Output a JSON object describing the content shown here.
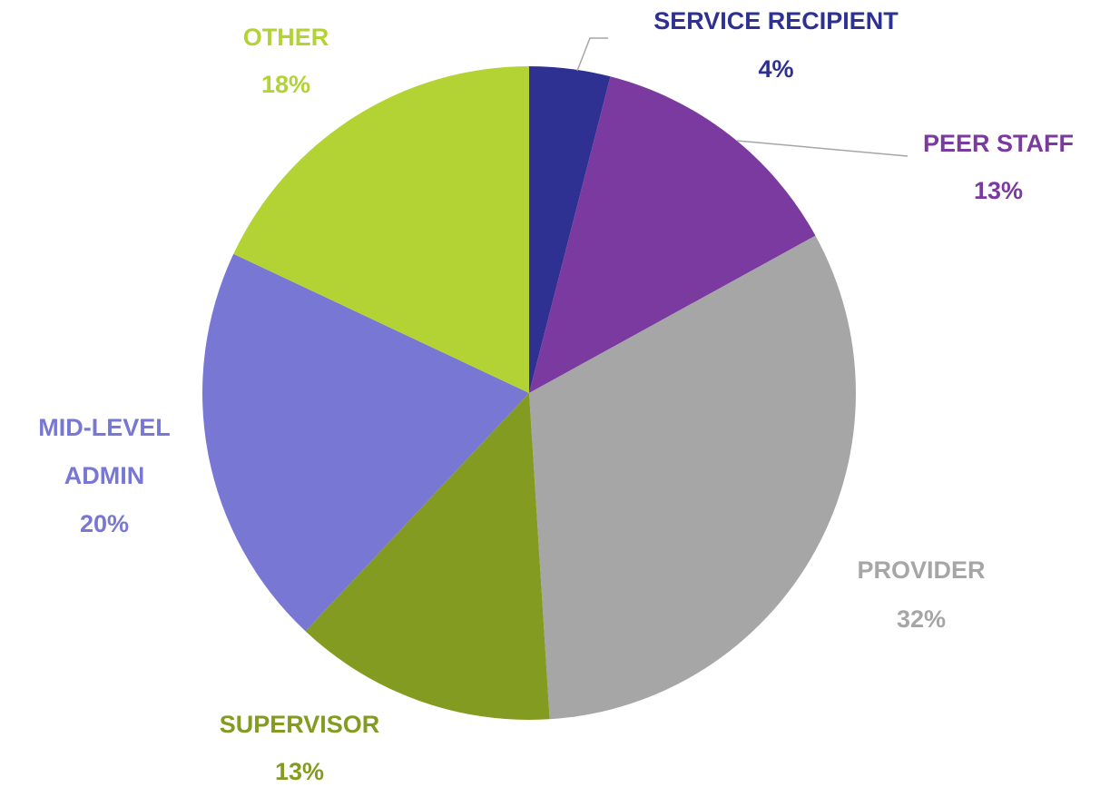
{
  "chart_data": {
    "type": "pie",
    "categories": [
      "SERVICE RECIPIENT",
      "PEER STAFF",
      "PROVIDER",
      "SUPERVISOR",
      "MID-LEVEL ADMIN",
      "OTHER"
    ],
    "values": [
      4,
      13,
      32,
      13,
      20,
      18
    ],
    "value_labels": [
      "4%",
      "13%",
      "32%",
      "13%",
      "20%",
      "18%"
    ],
    "colors": [
      "#2e3192",
      "#7b3aa0",
      "#a6a6a6",
      "#849b22",
      "#7878d4",
      "#b3d335"
    ]
  }
}
